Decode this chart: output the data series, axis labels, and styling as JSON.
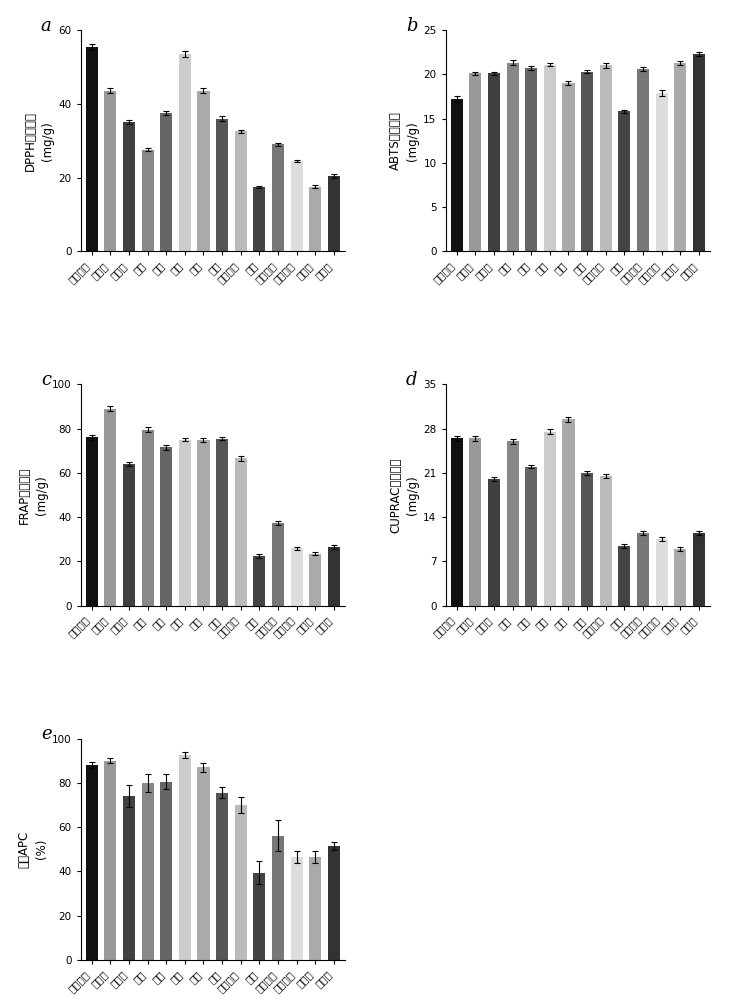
{
  "categories": [
    "温州蜜柑",
    "茶枝柑",
    "不知火",
    "椪柑",
    "沃柑",
    "胡柚",
    "柠檬",
    "血橙",
    "伦晚脶橙",
    "佛手",
    "龙岩金柑",
    "遂川金柑",
    "苹果柚",
    "马家柚"
  ],
  "panel_a": {
    "title": "a",
    "ylabel": "DPPH清除能力（mg/g）",
    "ylabel_line1": "DPPH清除能力",
    "ylabel_line2": "(mg/g)",
    "ylim": [
      0,
      60
    ],
    "yticks": [
      0,
      20,
      40,
      60
    ],
    "values": [
      55.5,
      43.5,
      35.0,
      27.5,
      37.5,
      53.5,
      43.5,
      36.0,
      32.5,
      17.5,
      29.0,
      24.5,
      17.5,
      20.5
    ],
    "errors": [
      0.8,
      0.7,
      0.5,
      0.4,
      0.5,
      0.8,
      0.7,
      0.6,
      0.5,
      0.3,
      0.5,
      0.4,
      0.4,
      0.5
    ]
  },
  "panel_b": {
    "title": "b",
    "ylabel": "ABTS清除能力（mg/g）",
    "ylabel_line1": "ABTS清除能力",
    "ylabel_line2": "(mg/g)",
    "ylim": [
      0,
      25
    ],
    "yticks": [
      0,
      5,
      10,
      15,
      20,
      25
    ],
    "values": [
      17.2,
      20.1,
      20.1,
      21.3,
      20.7,
      21.1,
      19.0,
      20.3,
      21.0,
      15.8,
      20.6,
      17.9,
      21.3,
      22.3
    ],
    "errors": [
      0.3,
      0.2,
      0.2,
      0.3,
      0.2,
      0.2,
      0.2,
      0.2,
      0.3,
      0.2,
      0.2,
      0.3,
      0.2,
      0.2
    ]
  },
  "panel_c": {
    "title": "c",
    "ylabel": "FRAP清除能力（mg/g）",
    "ylabel_line1": "FRAP清除能力",
    "ylabel_line2": "(mg/g)",
    "ylim": [
      0,
      100
    ],
    "yticks": [
      0,
      20,
      40,
      60,
      80,
      100
    ],
    "values": [
      76.0,
      89.0,
      64.0,
      79.5,
      71.5,
      75.0,
      75.0,
      75.5,
      66.5,
      22.5,
      37.5,
      26.0,
      23.5,
      26.5
    ],
    "errors": [
      1.2,
      1.0,
      0.8,
      1.0,
      1.0,
      0.8,
      0.9,
      0.8,
      1.0,
      0.8,
      0.9,
      0.7,
      0.7,
      0.8
    ]
  },
  "panel_d": {
    "title": "d",
    "ylabel": "CUPRAC清除能力（mg/g）",
    "ylabel_line1": "CUPRAC清除能力",
    "ylabel_line2": "(mg/g)",
    "ylim": [
      0,
      35
    ],
    "yticks": [
      0,
      7,
      14,
      21,
      28,
      35
    ],
    "values": [
      26.5,
      26.5,
      20.0,
      26.0,
      22.0,
      27.5,
      29.5,
      21.0,
      20.5,
      9.5,
      11.5,
      10.5,
      9.0,
      11.5
    ],
    "errors": [
      0.4,
      0.4,
      0.3,
      0.4,
      0.3,
      0.4,
      0.4,
      0.3,
      0.3,
      0.3,
      0.3,
      0.3,
      0.3,
      0.3
    ]
  },
  "panel_e": {
    "title": "e",
    "ylabel": "综合APC（%）",
    "ylabel_line1": "综合APC",
    "ylabel_line2": "(%)",
    "ylim": [
      0,
      100
    ],
    "yticks": [
      0,
      20,
      40,
      60,
      80,
      100
    ],
    "values": [
      88.0,
      90.0,
      74.0,
      80.0,
      80.5,
      92.5,
      87.0,
      75.5,
      70.0,
      39.5,
      56.0,
      46.5,
      46.5,
      51.5
    ],
    "errors": [
      1.5,
      1.2,
      5.0,
      4.0,
      3.5,
      1.5,
      2.0,
      2.5,
      3.5,
      5.0,
      7.0,
      2.5,
      2.5,
      2.0
    ]
  },
  "bar_colors": [
    "#111111",
    "#999999",
    "#404040",
    "#888888",
    "#666666",
    "#cccccc",
    "#aaaaaa",
    "#555555",
    "#bbbbbb",
    "#444444",
    "#777777",
    "#dddddd",
    "#aaaaaa",
    "#333333"
  ],
  "background_color": "#ffffff",
  "label_fontsize": 8.5,
  "tick_fontsize": 7.5,
  "panel_label_fontsize": 13
}
